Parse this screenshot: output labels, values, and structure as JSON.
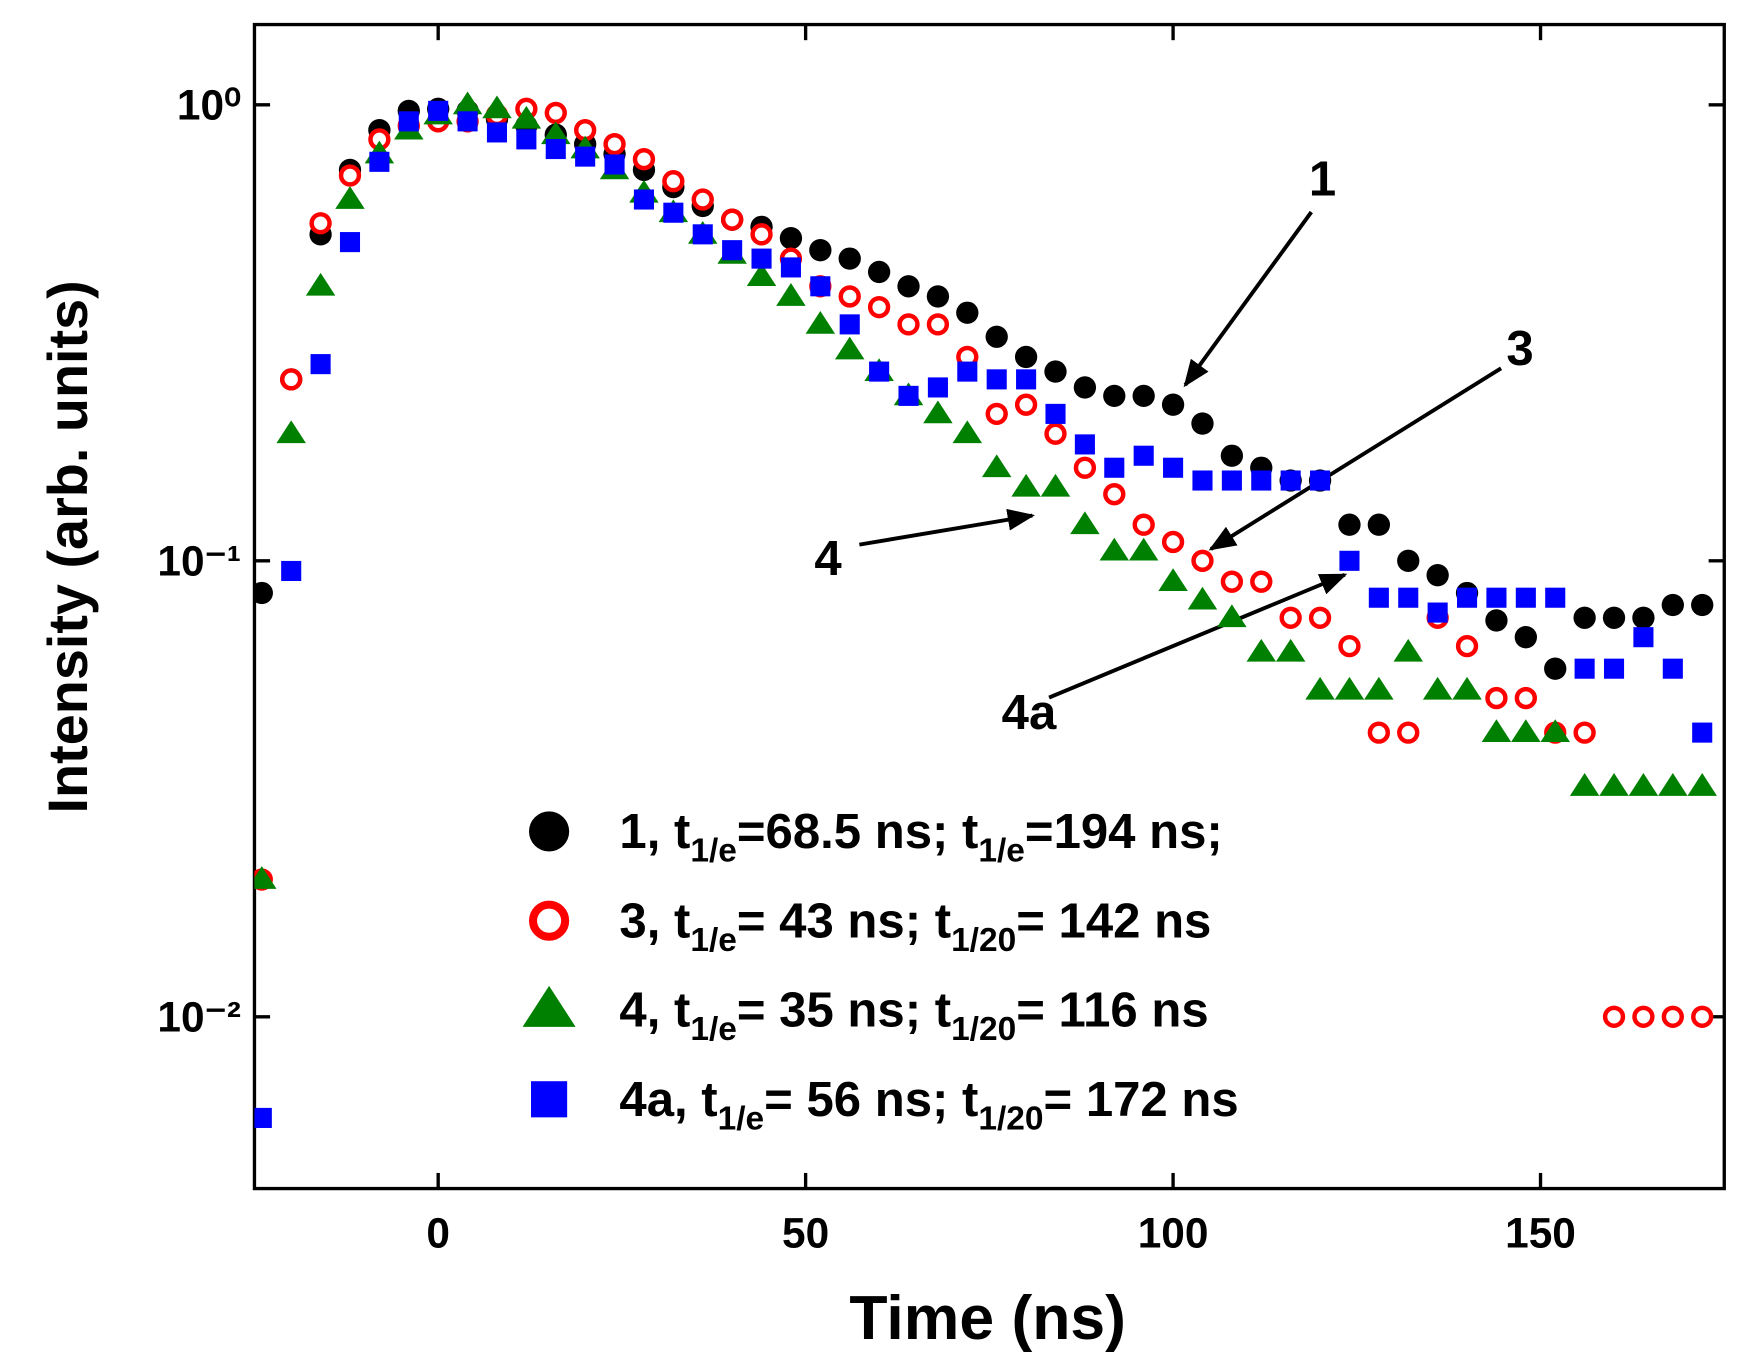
{
  "chart_data": {
    "type": "scatter",
    "x_label": "Time (ns)",
    "y_label": "Intensity (arb. units)",
    "xlim": [
      -25,
      175
    ],
    "xticks": [
      0,
      50,
      100,
      150
    ],
    "ylim": [
      0.0042,
      1.5
    ],
    "log_y": true,
    "yticks": [
      {
        "value": 1,
        "label": "10⁰"
      },
      {
        "value": 0.1,
        "label": "10⁻¹"
      },
      {
        "value": 0.01,
        "label": "10⁻²"
      }
    ],
    "legend": "bottom",
    "x": [
      -24,
      -20,
      -16,
      -12,
      -8,
      -4,
      0,
      4,
      8,
      12,
      16,
      20,
      24,
      28,
      32,
      36,
      40,
      44,
      48,
      52,
      56,
      60,
      64,
      68,
      72,
      76,
      80,
      84,
      88,
      92,
      96,
      100,
      104,
      108,
      112,
      116,
      120,
      124,
      128,
      132,
      136,
      140,
      144,
      148,
      152,
      156,
      160,
      164,
      168,
      172
    ],
    "series": [
      {
        "name": "1, t1/e=68.5 ns; t1/e=194 ns;",
        "color": "#000000",
        "marker": "filled-circle",
        "values": [
          0.085,
          0.25,
          0.52,
          0.72,
          0.88,
          0.97,
          0.98,
          0.97,
          0.93,
          0.9,
          0.86,
          0.82,
          0.78,
          0.72,
          0.66,
          0.6,
          0.56,
          0.54,
          0.51,
          0.48,
          0.46,
          0.43,
          0.4,
          0.38,
          0.35,
          0.31,
          0.28,
          0.26,
          0.24,
          0.23,
          0.23,
          0.22,
          0.2,
          0.17,
          0.16,
          0.15,
          0.15,
          0.12,
          0.12,
          0.1,
          0.093,
          0.085,
          0.074,
          0.068,
          0.058,
          0.075,
          0.075,
          0.075,
          0.08,
          0.08
        ]
      },
      {
        "name": "3, t1/e= 43 ns; t1/20= 142 ns",
        "color": "#ff0000",
        "marker": "open-circle",
        "values": [
          0.02,
          0.25,
          0.55,
          0.7,
          0.84,
          0.9,
          0.92,
          0.92,
          0.95,
          0.98,
          0.96,
          0.88,
          0.82,
          0.76,
          0.68,
          0.62,
          0.56,
          0.52,
          0.46,
          0.4,
          0.38,
          0.36,
          0.33,
          0.33,
          0.28,
          0.21,
          0.22,
          0.19,
          0.16,
          0.14,
          0.12,
          0.11,
          0.1,
          0.09,
          0.09,
          0.075,
          0.075,
          0.065,
          0.042,
          0.042,
          0.075,
          0.065,
          0.05,
          0.05,
          0.042,
          0.042,
          0.01,
          0.01,
          0.01,
          0.01
        ]
      },
      {
        "name": "4, t1/e= 35 ns; t1/20= 116 ns",
        "color": "#008000",
        "marker": "triangle",
        "values": [
          0.02,
          0.19,
          0.4,
          0.62,
          0.78,
          0.88,
          0.95,
          1.0,
          0.98,
          0.93,
          0.86,
          0.8,
          0.72,
          0.64,
          0.58,
          0.52,
          0.47,
          0.42,
          0.38,
          0.33,
          0.29,
          0.26,
          0.23,
          0.21,
          0.19,
          0.16,
          0.145,
          0.145,
          0.12,
          0.105,
          0.105,
          0.09,
          0.082,
          0.075,
          0.063,
          0.063,
          0.052,
          0.052,
          0.052,
          0.063,
          0.052,
          0.052,
          0.042,
          0.042,
          0.042,
          0.032,
          0.032,
          0.032,
          0.032,
          0.032
        ]
      },
      {
        "name": "4a, t1/e= 56 ns; t1/20= 172 ns",
        "color": "#0000ff",
        "marker": "square",
        "values": [
          0.006,
          0.095,
          0.27,
          0.5,
          0.75,
          0.92,
          0.97,
          0.92,
          0.87,
          0.84,
          0.8,
          0.77,
          0.74,
          0.62,
          0.58,
          0.52,
          0.48,
          0.46,
          0.44,
          0.4,
          0.33,
          0.26,
          0.23,
          0.24,
          0.26,
          0.25,
          0.25,
          0.21,
          0.18,
          0.16,
          0.17,
          0.16,
          0.15,
          0.15,
          0.15,
          0.15,
          0.15,
          0.1,
          0.083,
          0.083,
          0.077,
          0.083,
          0.083,
          0.083,
          0.083,
          0.058,
          0.058,
          0.068,
          0.058,
          0.042
        ]
      }
    ],
    "annotations": [
      "1",
      "3",
      "4",
      "4a"
    ]
  }
}
